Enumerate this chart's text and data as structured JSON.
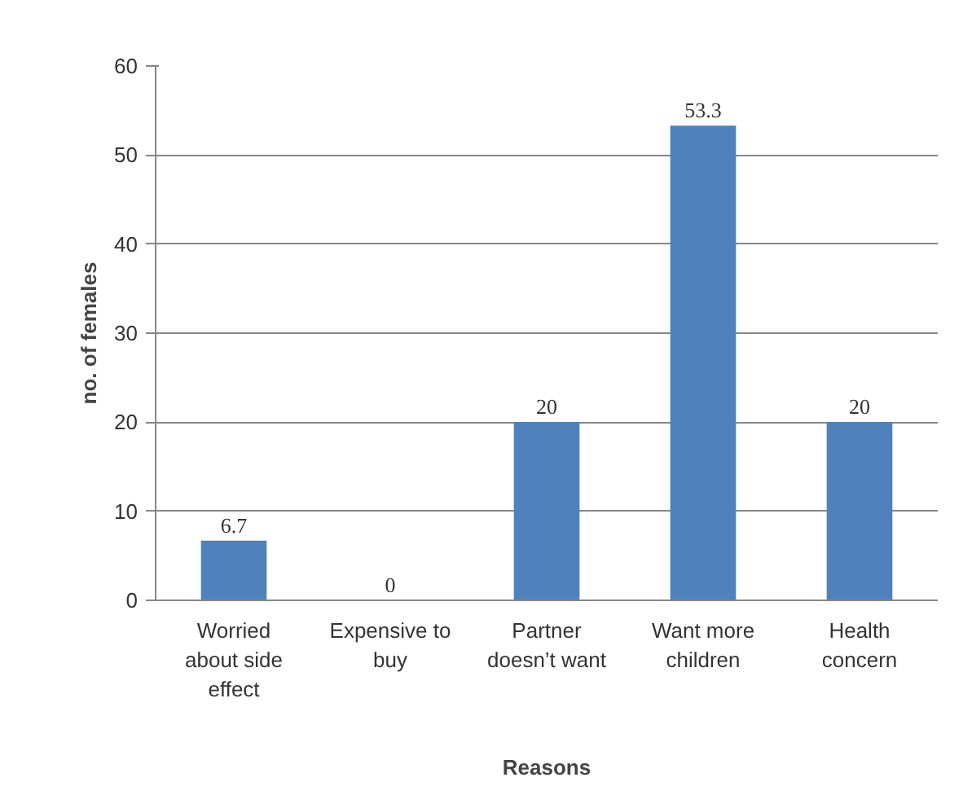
{
  "chart_data": {
    "type": "bar",
    "xlabel": "Reasons",
    "ylabel": "no. of females",
    "categories": [
      "Worried\nabout side\neffect",
      "Expensive to\nbuy",
      "Partner\ndoesn’t want",
      "Want more\nchildren",
      "Health\nconcern"
    ],
    "values": [
      6.7,
      0,
      20,
      53.3,
      20
    ],
    "color": "#4f81bd",
    "ylim": [
      0,
      60
    ],
    "yticks": [
      0,
      10,
      20,
      30,
      40,
      50,
      60
    ],
    "grid": "y",
    "data_labels": true
  }
}
